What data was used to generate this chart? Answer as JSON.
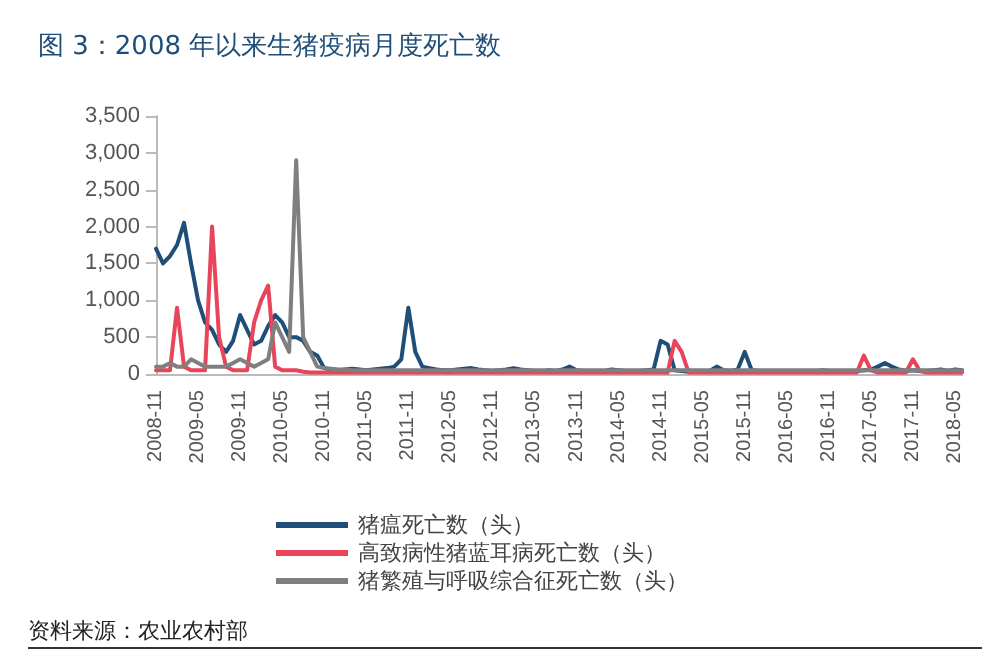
{
  "chart_data": {
    "type": "line",
    "title": "图 3：2008 年以来生猪疫病月度死亡数",
    "annotations": [
      "资料来源：农业农村部"
    ],
    "categories": [
      "2008-11",
      null,
      null,
      null,
      null,
      null,
      "2009-05",
      null,
      null,
      null,
      null,
      null,
      "2009-11",
      null,
      null,
      null,
      null,
      null,
      "2010-05",
      null,
      null,
      null,
      null,
      null,
      "2010-11",
      null,
      null,
      null,
      null,
      null,
      "2011-05",
      null,
      null,
      null,
      null,
      null,
      "2011-11",
      null,
      null,
      null,
      null,
      null,
      "2012-05",
      null,
      null,
      null,
      null,
      null,
      "2012-11",
      null,
      null,
      null,
      null,
      null,
      "2013-05",
      null,
      null,
      null,
      null,
      null,
      "2013-11",
      null,
      null,
      null,
      null,
      null,
      "2014-05",
      null,
      null,
      null,
      null,
      null,
      "2014-11",
      null,
      null,
      null,
      null,
      null,
      "2015-05",
      null,
      null,
      null,
      null,
      null,
      "2015-11",
      null,
      null,
      null,
      null,
      null,
      "2016-05",
      null,
      null,
      null,
      null,
      null,
      "2016-11",
      null,
      null,
      null,
      null,
      null,
      "2017-05",
      null,
      null,
      null,
      null,
      null,
      "2017-11",
      null,
      null,
      null,
      null,
      null,
      "2018-05",
      null
    ],
    "series": [
      {
        "name": "猪瘟死亡数（头）",
        "color": "#1f4e79",
        "values": [
          1700,
          1500,
          1600,
          1750,
          2050,
          1500,
          1000,
          700,
          600,
          400,
          300,
          450,
          800,
          600,
          400,
          450,
          650,
          800,
          700,
          500,
          500,
          450,
          300,
          250,
          80,
          60,
          50,
          60,
          70,
          60,
          50,
          60,
          70,
          80,
          100,
          200,
          900,
          300,
          100,
          80,
          60,
          50,
          50,
          60,
          70,
          80,
          60,
          50,
          40,
          50,
          60,
          80,
          60,
          50,
          40,
          30,
          50,
          40,
          60,
          100,
          50,
          40,
          30,
          30,
          40,
          60,
          50,
          40,
          30,
          40,
          50,
          60,
          450,
          400,
          50,
          40,
          30,
          40,
          30,
          40,
          100,
          50,
          40,
          60,
          300,
          50,
          40,
          30,
          40,
          30,
          30,
          40,
          30,
          40,
          30,
          50,
          40,
          30,
          40,
          30,
          40,
          50,
          60,
          100,
          150,
          100,
          60,
          40,
          50,
          40,
          40,
          50,
          60,
          40,
          60,
          50
        ]
      },
      {
        "name": "高致病性猪蓝耳病死亡数（头）",
        "color": "#e8445a",
        "values": [
          50,
          50,
          50,
          900,
          100,
          50,
          50,
          50,
          2000,
          500,
          100,
          50,
          50,
          50,
          700,
          1000,
          1200,
          100,
          50,
          50,
          50,
          30,
          20,
          20,
          20,
          20,
          20,
          20,
          20,
          20,
          20,
          20,
          20,
          20,
          20,
          20,
          20,
          20,
          20,
          20,
          20,
          20,
          20,
          20,
          20,
          20,
          20,
          20,
          20,
          20,
          20,
          20,
          20,
          20,
          20,
          20,
          20,
          20,
          20,
          20,
          20,
          20,
          20,
          20,
          20,
          20,
          20,
          20,
          20,
          20,
          20,
          20,
          20,
          20,
          450,
          300,
          20,
          20,
          20,
          20,
          20,
          20,
          20,
          20,
          20,
          20,
          20,
          20,
          20,
          20,
          20,
          20,
          20,
          20,
          20,
          20,
          20,
          20,
          20,
          20,
          20,
          250,
          50,
          20,
          20,
          20,
          20,
          20,
          200,
          40,
          20,
          20,
          20,
          20,
          20,
          20
        ]
      },
      {
        "name": "猪繁殖与呼吸综合征死亡数（头）",
        "color": "#7f7f7f",
        "values": [
          100,
          100,
          150,
          100,
          100,
          200,
          150,
          100,
          100,
          100,
          100,
          150,
          200,
          150,
          100,
          150,
          200,
          700,
          500,
          300,
          2900,
          500,
          300,
          100,
          80,
          70,
          60,
          60,
          50,
          50,
          50,
          50,
          50,
          50,
          50,
          50,
          50,
          50,
          50,
          50,
          50,
          50,
          50,
          50,
          50,
          50,
          50,
          50,
          50,
          50,
          50,
          50,
          50,
          50,
          50,
          50,
          50,
          50,
          50,
          50,
          50,
          50,
          50,
          50,
          50,
          50,
          50,
          50,
          50,
          50,
          50,
          50,
          50,
          50,
          50,
          50,
          50,
          50,
          50,
          50,
          50,
          50,
          50,
          50,
          50,
          50,
          50,
          50,
          50,
          50,
          50,
          50,
          50,
          50,
          50,
          50,
          50,
          50,
          50,
          50,
          50,
          50,
          50,
          50,
          50,
          50,
          50,
          50,
          50,
          50,
          50,
          50,
          50,
          50,
          50,
          50
        ]
      }
    ],
    "ylim": [
      0,
      3500
    ],
    "yticks": [
      0,
      500,
      {
        "value": 1000,
        "label": "1,000"
      },
      {
        "value": 1500,
        "label": "1,500"
      },
      {
        "value": 2000,
        "label": "2,000"
      },
      {
        "value": 2500,
        "label": "2,500"
      },
      {
        "value": 3000,
        "label": "3,000"
      },
      {
        "value": 3500,
        "label": "3,500"
      }
    ],
    "grid": false,
    "legend": "bottom",
    "marker": "none",
    "line_style": "solid"
  }
}
